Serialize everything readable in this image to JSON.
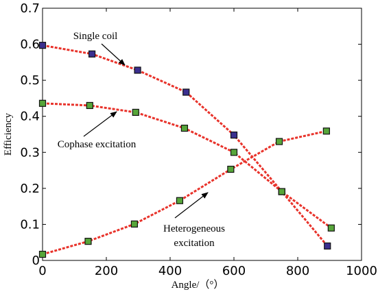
{
  "chart_data": {
    "type": "line",
    "title": "",
    "xlabel": "Angle/（°）",
    "ylabel": "Efficiency",
    "xlim": [
      0,
      1000
    ],
    "ylim": [
      0,
      0.7
    ],
    "xticks": [
      "0",
      "200",
      "400",
      "600",
      "800",
      "1000"
    ],
    "yticks": [
      "0",
      "0.1",
      "0.2",
      "0.3",
      "0.4",
      "0.5",
      "0.6",
      "0.7"
    ],
    "grid": false,
    "legend": "none",
    "line_color": "#e8322a",
    "series": [
      {
        "key": "single",
        "marker_color": "#3b2f8f",
        "points": [
          [
            0,
            0.597
          ],
          [
            155,
            0.573
          ],
          [
            298,
            0.528
          ],
          [
            450,
            0.467
          ],
          [
            600,
            0.348
          ],
          [
            750,
            0.191
          ],
          [
            893,
            0.04
          ]
        ]
      },
      {
        "key": "cophase",
        "marker_color": "#57a63a",
        "points": [
          [
            0,
            0.436
          ],
          [
            148,
            0.43
          ],
          [
            292,
            0.411
          ],
          [
            445,
            0.367
          ],
          [
            600,
            0.3
          ],
          [
            750,
            0.191
          ],
          [
            905,
            0.09
          ]
        ]
      },
      {
        "key": "hetero",
        "marker_color": "#57a63a",
        "points": [
          [
            0,
            0.017
          ],
          [
            143,
            0.053
          ],
          [
            288,
            0.101
          ],
          [
            430,
            0.166
          ],
          [
            590,
            0.253
          ],
          [
            742,
            0.33
          ],
          [
            890,
            0.359
          ]
        ]
      }
    ],
    "annotations": [
      {
        "lines": [
          "Single coil"
        ]
      },
      {
        "lines": [
          "Cophase excitation"
        ]
      },
      {
        "lines": [
          "Heterogeneous",
          "excitation"
        ]
      }
    ]
  }
}
